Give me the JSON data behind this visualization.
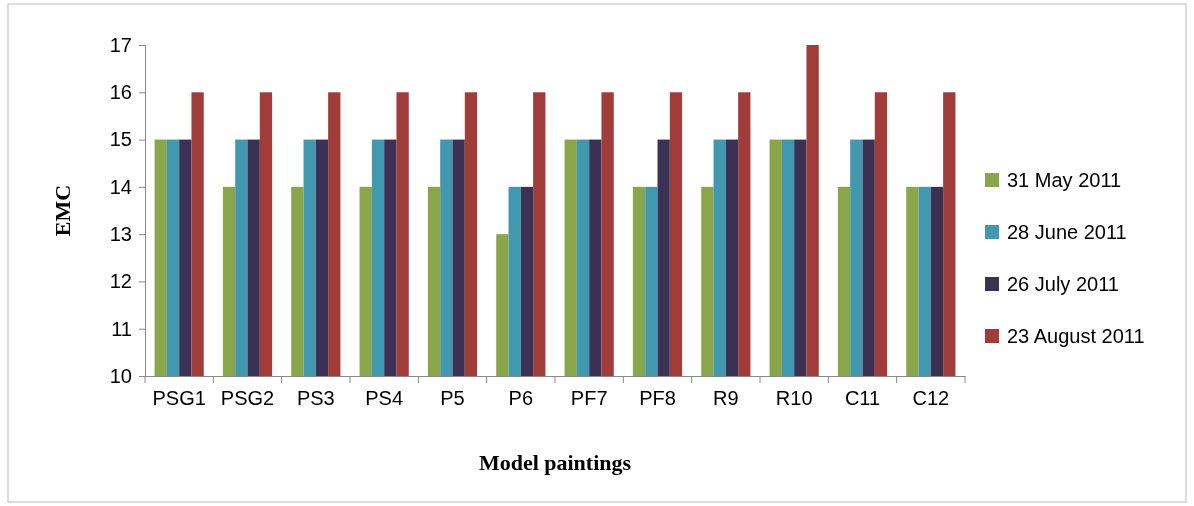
{
  "chart_data": {
    "type": "bar",
    "xlabel": "Model paintings",
    "ylabel": "EMC",
    "categories": [
      "PSG1",
      "PSG2",
      "PS3",
      "PS4",
      "P5",
      "P6",
      "PF7",
      "PF8",
      "R9",
      "R10",
      "C11",
      "C12"
    ],
    "series": [
      {
        "name": "31 May 2011",
        "color": "#8aa64a",
        "values": [
          15,
          14,
          14,
          14,
          14,
          13,
          15,
          14,
          14,
          15,
          14,
          14
        ]
      },
      {
        "name": "28 June 2011",
        "color": "#4198af",
        "values": [
          15,
          15,
          15,
          15,
          15,
          14,
          15,
          14,
          15,
          15,
          15,
          14
        ]
      },
      {
        "name": "26 July 2011",
        "color": "#3b3154",
        "values": [
          15,
          15,
          15,
          15,
          15,
          14,
          15,
          15,
          15,
          15,
          15,
          14
        ]
      },
      {
        "name": "23 August 2011",
        "color": "#a03c3a",
        "values": [
          16,
          16,
          16,
          16,
          16,
          16,
          16,
          16,
          16,
          17,
          16,
          16
        ]
      }
    ],
    "ylim": [
      10,
      17
    ],
    "yticks": [
      10,
      11,
      12,
      13,
      14,
      15,
      16,
      17
    ],
    "grid": false,
    "legend": "right"
  }
}
